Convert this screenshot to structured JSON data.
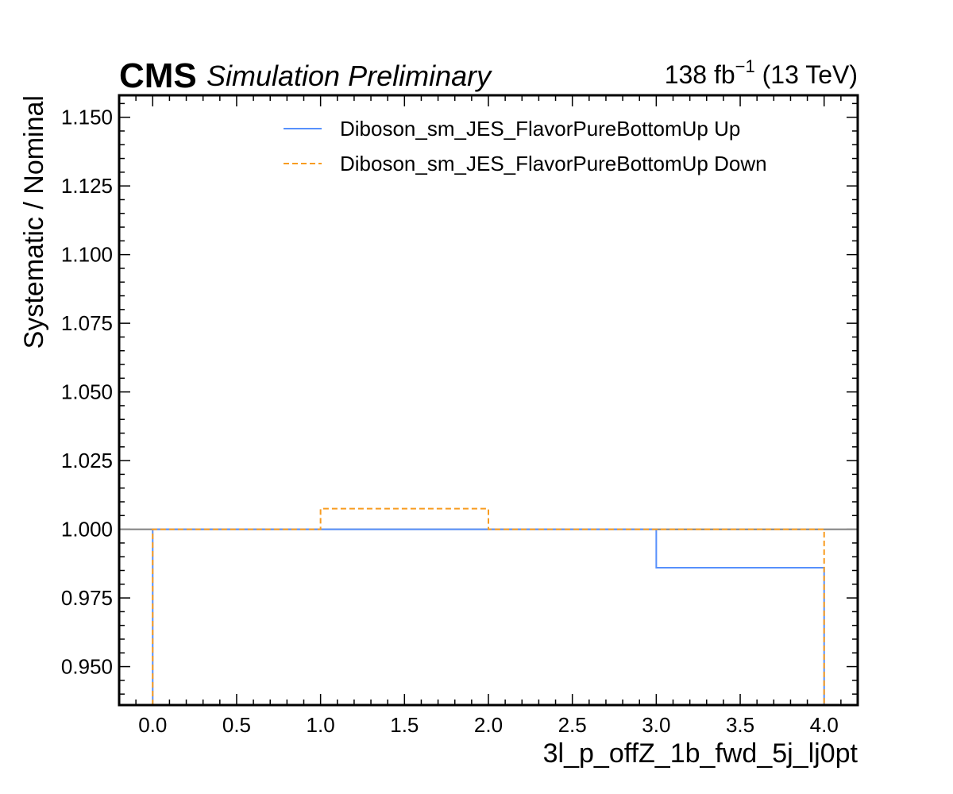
{
  "header": {
    "experiment": "CMS",
    "status": "Simulation Preliminary",
    "lumi_value": "138 fb",
    "lumi_exp": "−1",
    "lumi_energy": " (13 TeV)"
  },
  "chart_data": {
    "type": "line",
    "drawstyle": "step",
    "xlabel": "3l_p_offZ_1b_fwd_5j_lj0pt",
    "ylabel": "Systematic / Nominal",
    "xlim": [
      -0.2,
      4.2
    ],
    "ylim": [
      0.936,
      1.158
    ],
    "xticks": [
      0.0,
      0.5,
      1.0,
      1.5,
      2.0,
      2.5,
      3.0,
      3.5,
      4.0
    ],
    "xtick_labels": [
      "0.0",
      "0.5",
      "1.0",
      "1.5",
      "2.0",
      "2.5",
      "3.0",
      "3.5",
      "4.0"
    ],
    "yticks": [
      0.95,
      0.975,
      1.0,
      1.025,
      1.05,
      1.075,
      1.1,
      1.125,
      1.15
    ],
    "ytick_labels": [
      "0.950",
      "0.975",
      "1.000",
      "1.025",
      "1.050",
      "1.075",
      "1.100",
      "1.125",
      "1.150"
    ],
    "bin_edges": [
      0,
      1,
      2,
      3,
      4
    ],
    "reference_line": 1.0,
    "grid": false,
    "legend_position": "top-right",
    "series": [
      {
        "name": "Diboson_sm_JES_FlavorPureBottomUp Up",
        "values": [
          1.0,
          1.0,
          1.0,
          0.986
        ],
        "color": "#5790fc",
        "dash": "solid"
      },
      {
        "name": "Diboson_sm_JES_FlavorPureBottomUp Down",
        "values": [
          1.0,
          1.0075,
          1.0,
          1.0
        ],
        "color": "#f89c20",
        "dash": "dashed"
      }
    ]
  }
}
